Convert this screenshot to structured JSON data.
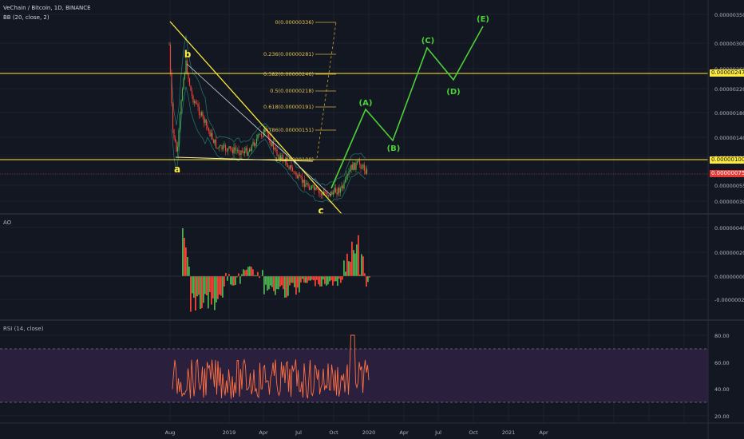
{
  "header": {
    "symbol_title": "VeChain / Bitcoin, 1D, BINANCE",
    "bb_label": "BB (20, close, 2)"
  },
  "indicators": {
    "ao_label": "AO",
    "rsi_label": "RSI (14, close)"
  },
  "colors": {
    "background": "#131722",
    "grid": "#1e222d",
    "yellow": "#ffeb3b",
    "green": "#4caf50",
    "red": "#f44336",
    "price_tag": "#e53935",
    "rsi_line": "#ff7043",
    "rsi_band": "#2a1f3d",
    "wave": "#4cd137",
    "bb": "#26a69a"
  },
  "price_axis": {
    "ticks": [
      "0.00000350",
      "0.00000300",
      "0.00000260",
      "0.00000220",
      "0.00000180",
      "0.00000140",
      "0.00000110",
      "0.00000080",
      "0.00000055",
      "0.00000030"
    ],
    "tag_yellow_top": "0.00000247",
    "tag_yellow_bottom": "0.00000100",
    "tag_current": "0.00000075"
  },
  "ao_axis": {
    "ticks": [
      "0.00000040",
      "0.00000020",
      "0.00000000",
      "-0.00000020"
    ]
  },
  "rsi_axis": {
    "ticks": [
      "80.00",
      "60.00",
      "40.00",
      "20.00"
    ]
  },
  "time_axis": {
    "ticks": [
      "Aug",
      "2019",
      "Apr",
      "Jul",
      "Oct",
      "2020",
      "Apr",
      "Jul",
      "Oct",
      "2021",
      "Apr"
    ]
  },
  "fib_levels": [
    "0(0.00000336)",
    "0.236(0.00000281)",
    "0.382(0.00000246)",
    "0.5(0.00000218)",
    "0.618(0.00000191)",
    "0.786(0.00000151)",
    "1(0.00000100)"
  ],
  "wave_labels": {
    "a": "a",
    "b": "b",
    "c": "c",
    "A": "(A)",
    "B": "(B)",
    "C": "(C)",
    "D": "(D)",
    "E": "(E)"
  }
}
